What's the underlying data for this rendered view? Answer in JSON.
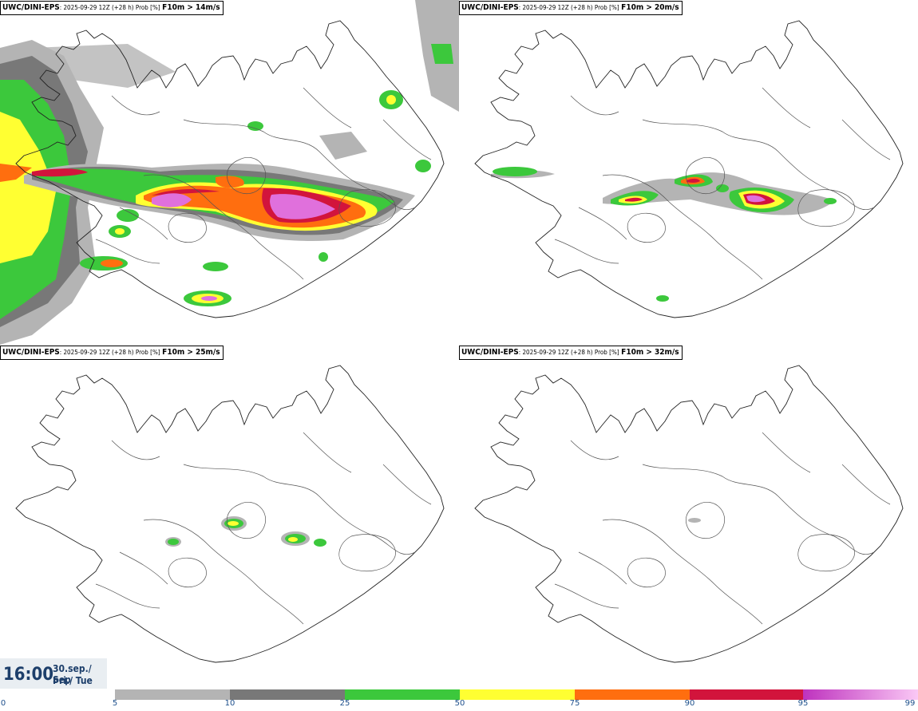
{
  "panels": [
    {
      "model": "UWC/DINI-EPS",
      "meta": ": 2025-09-29 12Z (+28 h) Prob [%]",
      "threshold": "F10m > 14m/s"
    },
    {
      "model": "UWC/DINI-EPS",
      "meta": ": 2025-09-29 12Z (+28 h) Prob [%]",
      "threshold": "F10m > 20m/s"
    },
    {
      "model": "UWC/DINI-EPS",
      "meta": ": 2025-09-29 12Z (+28 h) Prob [%]",
      "threshold": "F10m > 25m/s"
    },
    {
      "model": "UWC/DINI-EPS",
      "meta": ": 2025-09-29 12Z (+28 h) Prob [%]",
      "threshold": "F10m > 32m/s"
    }
  ],
  "valid_time": {
    "time": "16:00",
    "date_line1": "30.sep./ Sep",
    "date_line2": "Þri./ Tue"
  },
  "colorbar": {
    "ticks": [
      "0",
      "5",
      "10",
      "25",
      "50",
      "75",
      "90",
      "95",
      "99"
    ],
    "colors": {
      "0-5": "#ffffff",
      "5-10": "#b4b4b4",
      "10-25": "#787878",
      "25-50": "#3cc83c",
      "50-75": "#ffff32",
      "75-90": "#ff6e0f",
      "90-95": "#d2143c",
      "95-99-start": "#be32be",
      "95-99-end": "#fac8f5"
    }
  },
  "map": {
    "region": "Iceland",
    "coastline_color": "#222222"
  }
}
